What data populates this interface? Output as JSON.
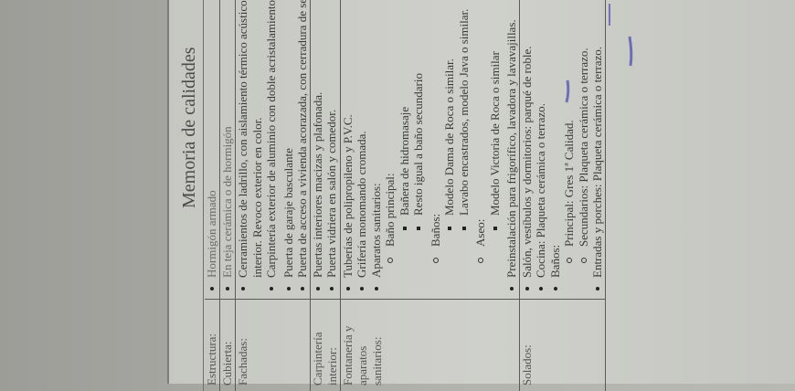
{
  "document": {
    "title": "Memoria de calidades",
    "rows": [
      {
        "label": "Estructura:",
        "items": [
          "Hormigón armado"
        ]
      },
      {
        "label": "Cubierta:",
        "items": [
          "En teja cerámica o de hormigón"
        ]
      },
      {
        "label": "Fachadas:",
        "items": [
          "Cerramientos de ladrillo, con aislamiento térmico acústico y tabique interior. Revoco exterior en color.",
          "Carpintería exterior de aluminio con doble acristalamiento Climalit.",
          "Puerta de garaje basculante",
          "Puerta de acceso a vivienda acorazada, con cerradura de seguridad."
        ]
      },
      {
        "label": "Carpintería interior:",
        "items": [
          "Puertas interiores macizas y plafonada.",
          "Puerta vidriera en salón y comedor."
        ]
      },
      {
        "label": "Fontanería y aparatos sanitarios:",
        "items": [
          "Tuberías de polipropileno y P.V.C.",
          "Grifería monomando cromada.",
          "Aparatos sanitarios:"
        ],
        "sanitarios": [
          {
            "label": "Baño principal:",
            "items": [
              "Bañera de hidromasaje",
              "Resto igual a baño secundario"
            ]
          },
          {
            "label": "Baños:",
            "items": [
              "Modelo Dama de Roca o similar.",
              "Lavabo encastrados, modelo Java o similar."
            ]
          },
          {
            "label": "Aseo:",
            "items": [
              "Modelo Victoria de Roca o similar"
            ]
          }
        ],
        "extra": "Preinstalación para frigorífico, lavadora y lavavajillas."
      },
      {
        "label": "Solados:",
        "items": [
          "Salón, vestíbulos y dormitorios: parqué de roble.",
          "Cocina: Plaqueta cerámica o terrazo.",
          "Baños:"
        ],
        "banos": [
          "Principal: Gres 1ª Calidad.",
          "Secundarios: Plaqueta cerámica o terrazo."
        ],
        "extra": "Entradas y porches: Plaqueta cerámica o terrazo."
      }
    ]
  },
  "colors": {
    "ink": "#4b4fb0",
    "paper": "#cfd0cb"
  }
}
